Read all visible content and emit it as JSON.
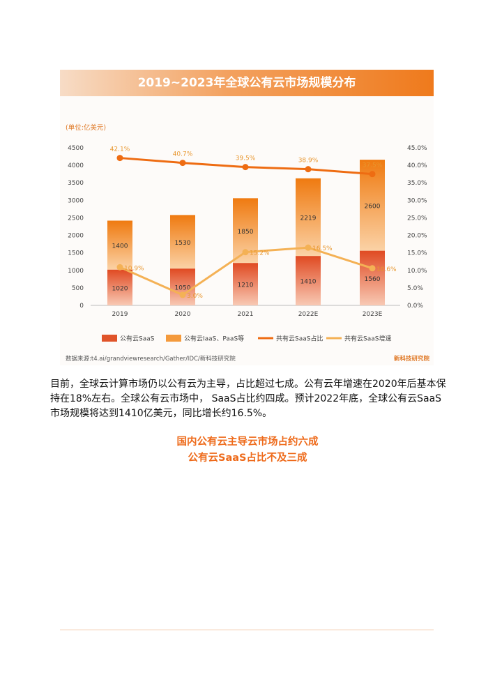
{
  "figure": {
    "title": "2019~2023年全球公有云市场规模分布",
    "source": "数据来源:t4.ai/grandviewresearch/Gather/IDC/新科技研究院",
    "brand": "新科技研究院"
  },
  "chart_data": {
    "type": "bar",
    "unit_label": "(单位:亿美元)",
    "categories": [
      "2019",
      "2020",
      "2021",
      "2022E",
      "2023E"
    ],
    "series": [
      {
        "name": "公有云SaaS",
        "kind": "bar-stacked",
        "values": [
          1020,
          1050,
          1210,
          1410,
          1560
        ],
        "color": "#e0542a"
      },
      {
        "name": "公有云IaaS、PaaS等",
        "kind": "bar-stacked",
        "values": [
          1400,
          1530,
          1850,
          2219,
          2600
        ],
        "color": "#f49a3c"
      },
      {
        "name": "共有云SaaS占比",
        "kind": "line",
        "axis": "right",
        "values": [
          42.1,
          40.7,
          39.5,
          38.9,
          37.5
        ],
        "labels": [
          "42.1%",
          "40.7%",
          "39.5%",
          "38.9%",
          "37.5%"
        ],
        "color": "#ee6c12"
      },
      {
        "name": "共有云SaaS增速",
        "kind": "line",
        "axis": "right",
        "values": [
          10.9,
          3.0,
          15.2,
          16.5,
          10.6
        ],
        "labels": [
          "10.9%",
          "3.0%",
          "15.2%",
          "16.5%",
          "10.6%"
        ],
        "color": "#f4b155"
      }
    ],
    "ylim": [
      0,
      4500
    ],
    "yticks": [
      "0",
      "500",
      "1000",
      "1500",
      "2000",
      "2500",
      "3000",
      "3500",
      "4000",
      "4500"
    ],
    "y2lim": [
      0,
      45
    ],
    "y2ticks": [
      "0.0%",
      "5.0%",
      "10.0%",
      "15.0%",
      "20.0%",
      "25.0%",
      "30.0%",
      "35.0%",
      "40.0%",
      "45.0%"
    ],
    "legend_position": "bottom",
    "grid": false
  },
  "body": {
    "paragraph": "目前，全球云计算市场仍以公有云为主导，占比超过七成。公有云年增速在2020年后基本保持在18%左右。全球公有云市场中， SaaS占比约四成。预计2022年底，全球公有云SaaS市场规模将达到1410亿美元，同比增长约16.5%。",
    "heading_line1": "国内公有云主导云市场占约六成",
    "heading_line2": "公有云SaaS占比不及三成"
  }
}
